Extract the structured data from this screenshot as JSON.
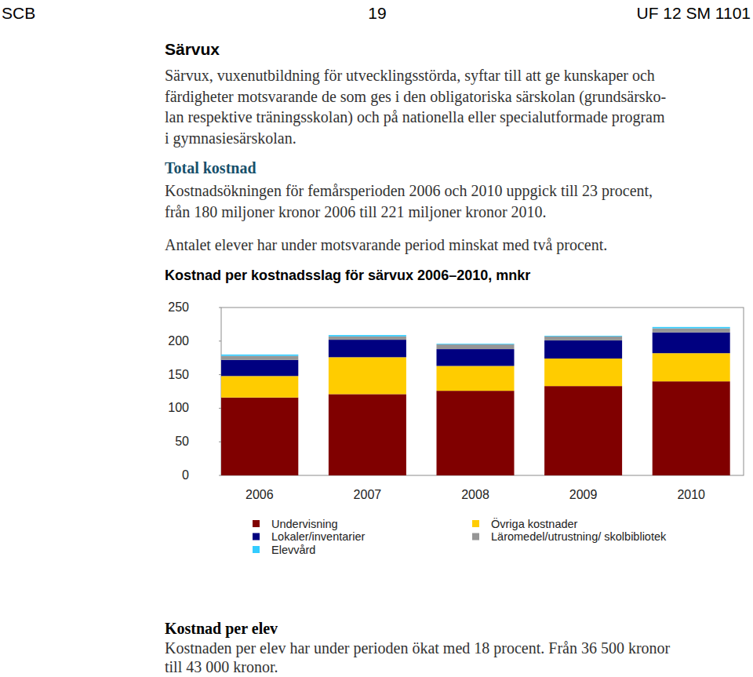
{
  "header": {
    "left": "SCB",
    "page": "19",
    "right": "UF 12 SM 1101"
  },
  "sections": [
    {
      "heading": "Särvux",
      "paragraphs": [
        {
          "lines": [
            "Särvux, vuxenutbildning för utvecklingsstörda, syftar till att ge kunskaper och",
            "färdigheter motsvarande de som ges i den obligatoriska särskolan (grundsärsko-",
            "lan respektive träningsskolan) och på nationella eller specialutformade program",
            "i gymnasiesärskolan."
          ]
        }
      ]
    },
    {
      "heading": "Total kostnad",
      "paragraphs": [
        {
          "lines": [
            "Kostnadsökningen för femårsperioden 2006 och 2010 uppgick till 23 procent,",
            "från 180 miljoner kronor 2006 till 221 miljoner kronor 2010."
          ]
        },
        {
          "lines": [
            "Antalet elever har under motsvarande period minskat med två procent."
          ]
        }
      ]
    },
    {
      "heading": "Kostnad per elev",
      "paragraphs": [
        {
          "lines": [
            "Kostnaden per elev har under perioden ökat med 18 procent. Från 36 500 kronor",
            "till 43 000 kronor."
          ]
        }
      ]
    }
  ],
  "chart_data": {
    "type": "bar",
    "stacked": true,
    "title": "Kostnad per kostnadsslag för särvux 2006–2010, mnkr",
    "categories": [
      "2006",
      "2007",
      "2008",
      "2009",
      "2010"
    ],
    "series": [
      {
        "name": "Undervisning",
        "color": "#800000",
        "values": [
          116,
          121,
          126,
          133,
          140
        ]
      },
      {
        "name": "Övriga kostnader",
        "color": "#ffcc00",
        "values": [
          32,
          55,
          37,
          41,
          42
        ]
      },
      {
        "name": "Lokaler/inventarier",
        "color": "#000080",
        "values": [
          24,
          26,
          25,
          27,
          31
        ]
      },
      {
        "name": "Läromedel/utrustning/ skolbibliotek",
        "color": "#969696",
        "values": [
          6,
          5,
          7,
          6,
          6
        ]
      },
      {
        "name": "Elevvård",
        "color": "#33ccff",
        "values": [
          2,
          2,
          1,
          1,
          2
        ]
      }
    ],
    "ylim": [
      0,
      250
    ],
    "yticks": [
      0,
      50,
      100,
      150,
      200,
      250
    ],
    "grid": false,
    "legend": "bottom"
  }
}
